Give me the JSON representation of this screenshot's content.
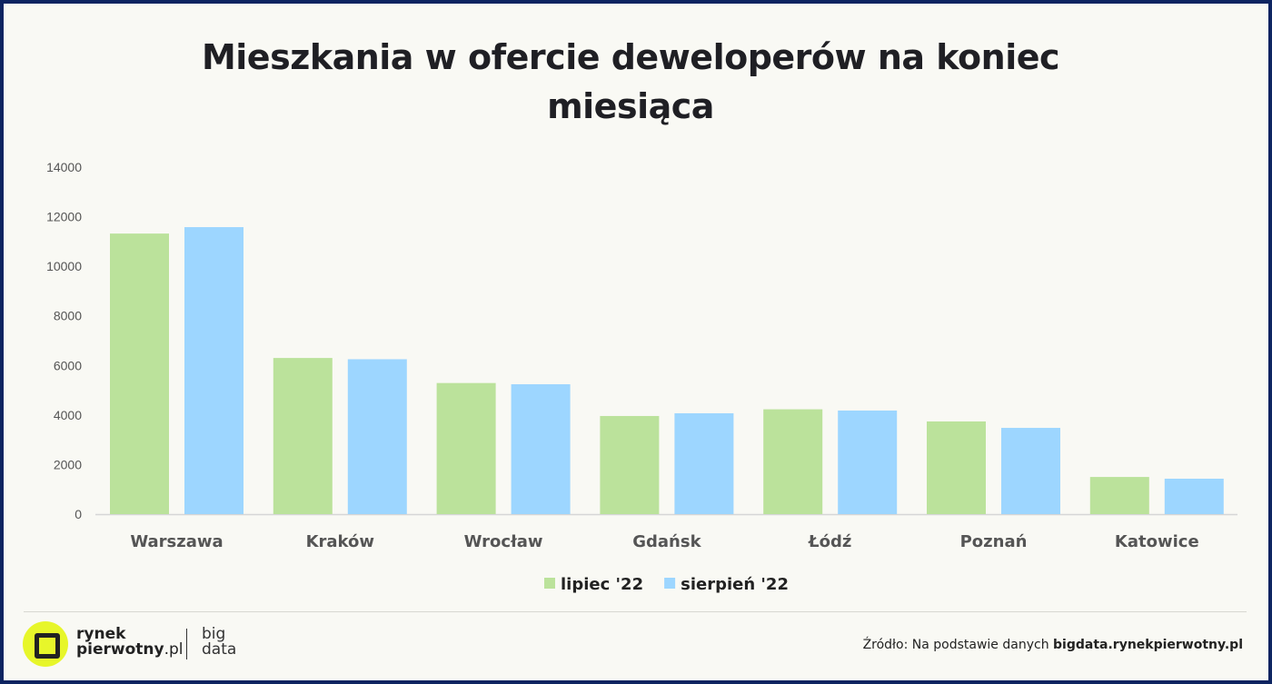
{
  "chart_data": {
    "type": "bar",
    "title": "Mieszkania w ofercie deweloperów na koniec miesiąca",
    "title_lines": [
      "Mieszkania w ofercie deweloperów na koniec",
      "miesiąca"
    ],
    "categories": [
      "Warszawa",
      "Kraków",
      "Wrocław",
      "Gdańsk",
      "Łódź",
      "Poznań",
      "Katowice"
    ],
    "series": [
      {
        "name": "lipiec '22",
        "color": "#bbe29b",
        "values": [
          11320,
          6300,
          5290,
          3960,
          4230,
          3740,
          1500
        ]
      },
      {
        "name": "sierpień '22",
        "color": "#9dd6ff",
        "values": [
          11580,
          6250,
          5240,
          4070,
          4180,
          3480,
          1430
        ]
      }
    ],
    "ylim": [
      0,
      14000
    ],
    "yticks": [
      "0",
      "2000",
      "4000",
      "6000",
      "8000",
      "10000",
      "12000",
      "14000"
    ],
    "grid": false,
    "legend": "bottom-center"
  },
  "footer": {
    "brand_line1": "rynek",
    "brand_line2": "pierwotny",
    "brand_suffix": ".pl",
    "bigdata_line1": "big",
    "bigdata_line2": "data",
    "source_prefix": "Źródło: Na podstawie danych ",
    "source_bold": "bigdata.rynekpierwotny.pl"
  }
}
